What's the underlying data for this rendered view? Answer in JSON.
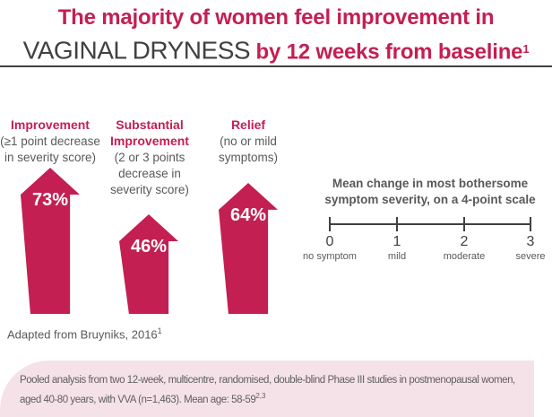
{
  "header": {
    "title_line1": "The majority of women feel improvement in",
    "title_emphasis": "VAGINAL DRYNESS",
    "title_line2": " by 12 weeks from baseline",
    "title_ref": "1"
  },
  "chart_data": {
    "type": "bar",
    "categories": [
      "Improvement (≥1 point decrease in severity score)",
      "Substantial Improvement (2 or 3 points decrease in severity score)",
      "Relief (no or mild symptoms)"
    ],
    "values": [
      73,
      46,
      64
    ],
    "unit": "%",
    "title": "The majority of women feel improvement in VAGINAL DRYNESS by 12 weeks from baseline",
    "ylim": [
      0,
      100
    ],
    "data_labels": [
      "73%",
      "46%",
      "64%"
    ],
    "severity_axis": {
      "caption": "Mean change in most bothersome symptom severity, on a 4-point scale",
      "ticks": [
        0,
        1,
        2,
        3
      ],
      "tick_labels": [
        "no symptom",
        "mild",
        "moderate",
        "severe"
      ]
    }
  },
  "columns": [
    {
      "label": "Improvement",
      "sublabel": "(≥1 point decrease in severity score)",
      "value_label": "73%"
    },
    {
      "label": "Substantial Improvement",
      "sublabel": "(2 or 3 points decrease in severity score)",
      "value_label": "46%"
    },
    {
      "label": "Relief",
      "sublabel": "(no or mild symptoms)",
      "value_label": "64%"
    }
  ],
  "scale": {
    "caption": "Mean change in most bothersome symptom severity, on a 4-point scale",
    "ticks": [
      {
        "value": "0",
        "label": "no symptom"
      },
      {
        "value": "1",
        "label": "mild"
      },
      {
        "value": "2",
        "label": "moderate"
      },
      {
        "value": "3",
        "label": "severe"
      }
    ]
  },
  "source": {
    "text": "Adapted from Bruyniks, 2016",
    "ref": "1"
  },
  "footnote": {
    "line1": "Pooled analysis from two 12-week, multicentre, randomised, double-blind Phase III studies in postmenopausal women,",
    "line2": "aged 40-80 years, with VVA (n=1,463). Mean age: 58-59",
    "ref": "2,3"
  },
  "colors": {
    "crimson": "#C41F52",
    "dark_gray": "#414042",
    "gray": "#58595B",
    "light_pink": "#F5E2E8"
  }
}
